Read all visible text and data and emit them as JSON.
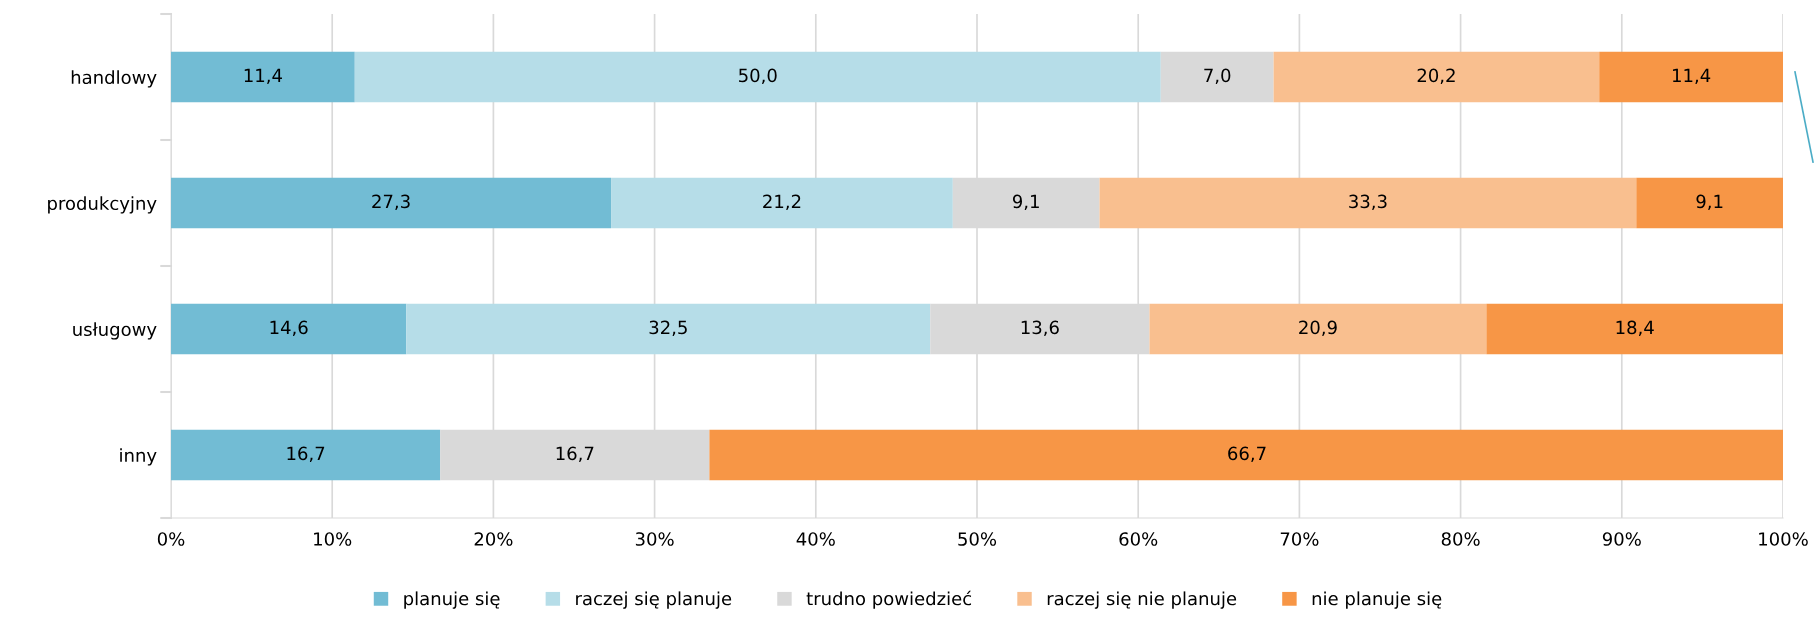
{
  "chart_data": {
    "type": "bar",
    "orientation": "horizontal",
    "stacked": true,
    "categories": [
      "handlowy",
      "produkcyjny",
      "usługowy",
      "inny"
    ],
    "series": [
      {
        "name": "planuje się",
        "color": "#72bcd4",
        "values": [
          11.4,
          27.3,
          14.6,
          16.7
        ],
        "value_labels": [
          "11,4",
          "27,3",
          "14,6",
          "16,7"
        ]
      },
      {
        "name": "raczej się planuje",
        "color": "#b6dde8",
        "values": [
          50.0,
          21.2,
          32.5,
          null
        ],
        "value_labels": [
          "50,0",
          "21,2",
          "32,5",
          null
        ]
      },
      {
        "name": "trudno powiedzieć",
        "color": "#d9d9d9",
        "values": [
          7.0,
          9.1,
          13.6,
          16.7
        ],
        "value_labels": [
          "7,0",
          "9,1",
          "13,6",
          "16,7"
        ]
      },
      {
        "name": "raczej się nie planuje",
        "color": "#f9bf8f",
        "values": [
          20.2,
          33.3,
          20.9,
          null
        ],
        "value_labels": [
          "20,2",
          "33,3",
          "20,9",
          null
        ]
      },
      {
        "name": "nie planuje się",
        "color": "#f79646",
        "values": [
          11.4,
          9.1,
          18.4,
          66.7
        ],
        "value_labels": [
          "11,4",
          "9,1",
          "18,4",
          "66,7"
        ]
      }
    ],
    "xlim": [
      0,
      100
    ],
    "xticks": [
      {
        "value": 0,
        "label": "0%"
      },
      {
        "value": 10,
        "label": "10%"
      },
      {
        "value": 20,
        "label": "20%"
      },
      {
        "value": 30,
        "label": "30%"
      },
      {
        "value": 40,
        "label": "40%"
      },
      {
        "value": 50,
        "label": "50%"
      },
      {
        "value": 60,
        "label": "60%"
      },
      {
        "value": 70,
        "label": "70%"
      },
      {
        "value": 80,
        "label": "80%"
      },
      {
        "value": 90,
        "label": "90%"
      },
      {
        "value": 100,
        "label": "100%"
      }
    ],
    "grid": "x",
    "legend": "bottom"
  }
}
